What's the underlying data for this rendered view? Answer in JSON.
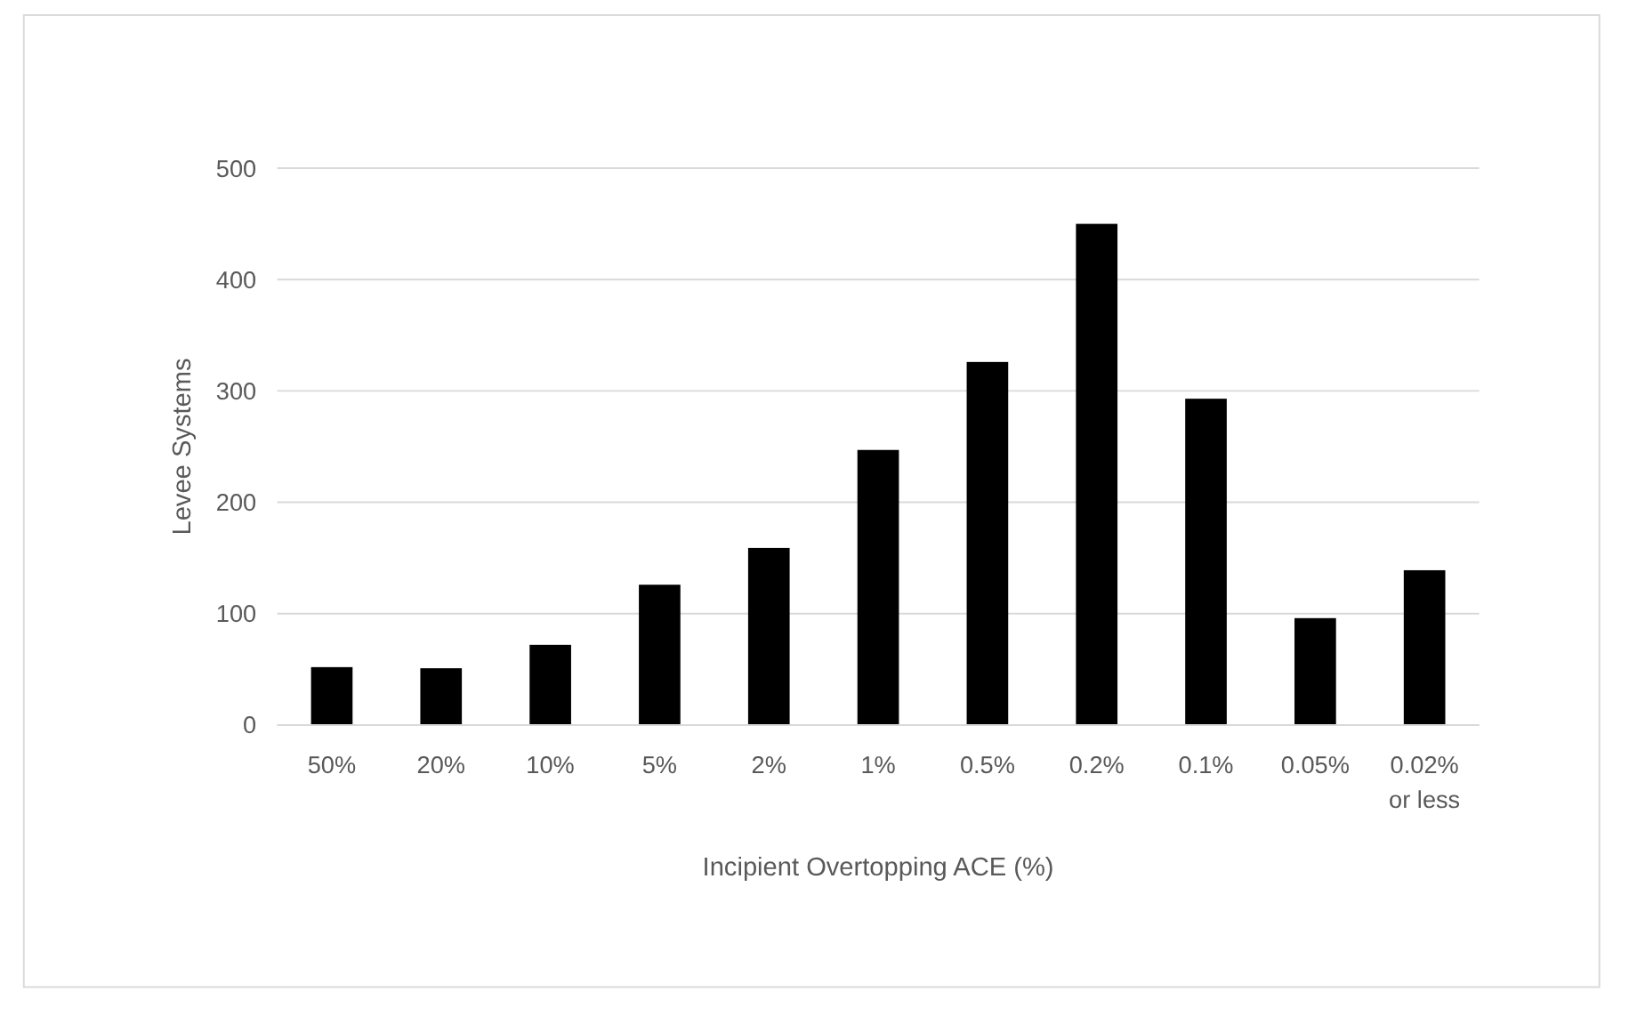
{
  "chart_data": {
    "type": "bar",
    "xlabel": "Incipient Overtopping ACE (%)",
    "ylabel": "Levee Systems",
    "categories": [
      "50%",
      "20%",
      "10%",
      "5%",
      "2%",
      "1%",
      "0.5%",
      "0.2%",
      "0.1%",
      "0.05%",
      "0.02% or less"
    ],
    "values": [
      52,
      51,
      72,
      126,
      159,
      247,
      326,
      450,
      293,
      96,
      139
    ],
    "color": "#000000",
    "ylim": [
      0,
      500
    ],
    "yticks": [
      0,
      100,
      200,
      300,
      400,
      500
    ],
    "grid": "y"
  }
}
